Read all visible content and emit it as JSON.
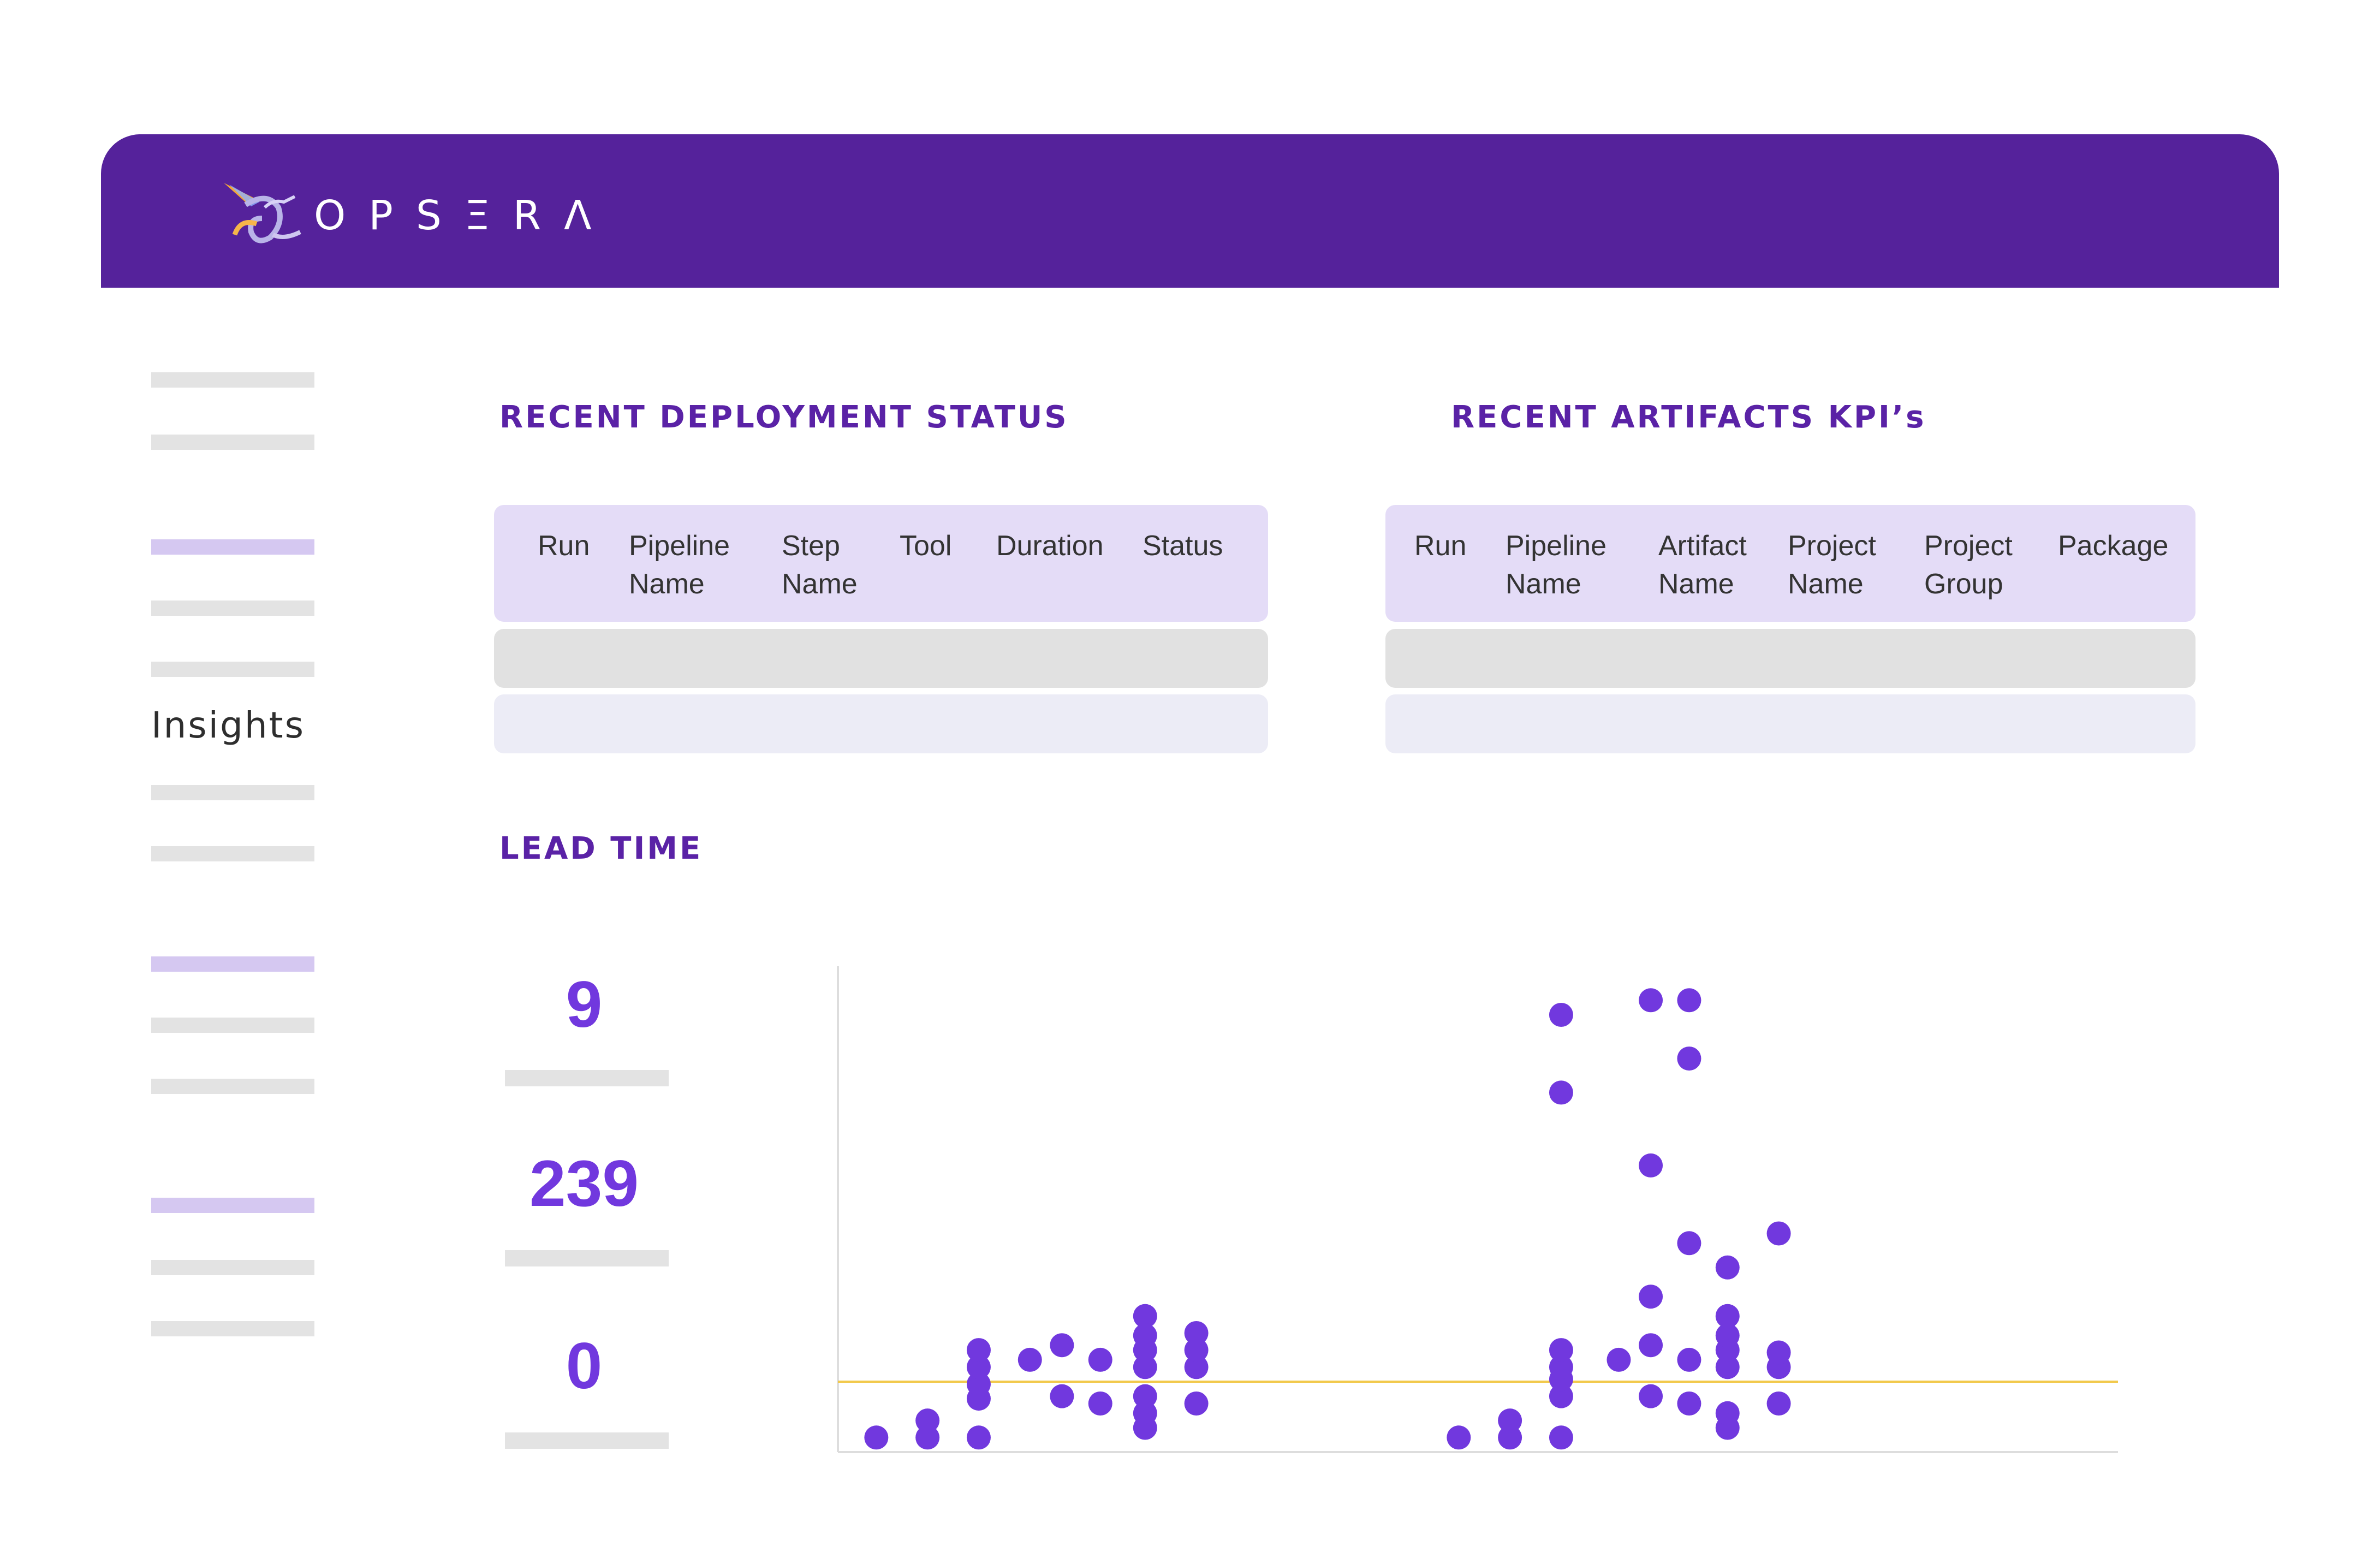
{
  "brand": {
    "name": "OPSΞRΛ",
    "accent": "#55229b",
    "dot_color": "#7138de"
  },
  "sidebar": {
    "label": "Insights"
  },
  "deployment": {
    "title": "RECENT DEPLOYMENT STATUS",
    "columns": [
      "Run",
      "Pipeline\nName",
      "Step\nName",
      "Tool",
      "Duration",
      "Status"
    ]
  },
  "artifacts": {
    "title": "RECENT ARTIFACTS KPI’s",
    "columns": [
      "Run",
      "Pipeline\nName",
      "Artifact\nName",
      "Project\nName",
      "Project\nGroup",
      "Package"
    ]
  },
  "lead_time": {
    "title": "LEAD TIME",
    "stats": [
      "9",
      "239",
      "0"
    ]
  },
  "chart_data": {
    "type": "scatter",
    "xlim": [
      0,
      100
    ],
    "ylim": [
      0,
      10
    ],
    "reference_line": 1.45,
    "reference_color": "#f2c94c",
    "points": [
      [
        3,
        0.3
      ],
      [
        7,
        0.3
      ],
      [
        7,
        0.65
      ],
      [
        11,
        0.3
      ],
      [
        11,
        1.1
      ],
      [
        11,
        1.4
      ],
      [
        11,
        1.75
      ],
      [
        11,
        2.1
      ],
      [
        15,
        1.9
      ],
      [
        17.5,
        1.15
      ],
      [
        17.5,
        2.2
      ],
      [
        20.5,
        1.0
      ],
      [
        20.5,
        1.9
      ],
      [
        24,
        0.5
      ],
      [
        24,
        0.8
      ],
      [
        24,
        1.15
      ],
      [
        24,
        1.75
      ],
      [
        24,
        2.1
      ],
      [
        24,
        2.4
      ],
      [
        24,
        2.8
      ],
      [
        28,
        1.0
      ],
      [
        28,
        1.75
      ],
      [
        28,
        2.1
      ],
      [
        28,
        2.45
      ],
      [
        48.5,
        0.3
      ],
      [
        52.5,
        0.3
      ],
      [
        52.5,
        0.65
      ],
      [
        56.5,
        0.3
      ],
      [
        56.5,
        1.15
      ],
      [
        56.5,
        1.5
      ],
      [
        56.5,
        1.75
      ],
      [
        56.5,
        2.1
      ],
      [
        56.5,
        7.4
      ],
      [
        56.5,
        9.0
      ],
      [
        61,
        1.9
      ],
      [
        63.5,
        1.15
      ],
      [
        63.5,
        2.2
      ],
      [
        63.5,
        3.2
      ],
      [
        63.5,
        5.9
      ],
      [
        63.5,
        9.3
      ],
      [
        66.5,
        1.0
      ],
      [
        66.5,
        1.9
      ],
      [
        66.5,
        4.3
      ],
      [
        66.5,
        8.1
      ],
      [
        66.5,
        9.3
      ],
      [
        69.5,
        0.5
      ],
      [
        69.5,
        0.8
      ],
      [
        69.5,
        1.75
      ],
      [
        69.5,
        2.1
      ],
      [
        69.5,
        2.4
      ],
      [
        69.5,
        2.8
      ],
      [
        69.5,
        3.8
      ],
      [
        73.5,
        1.0
      ],
      [
        73.5,
        1.75
      ],
      [
        73.5,
        2.05
      ],
      [
        73.5,
        4.5
      ]
    ]
  }
}
